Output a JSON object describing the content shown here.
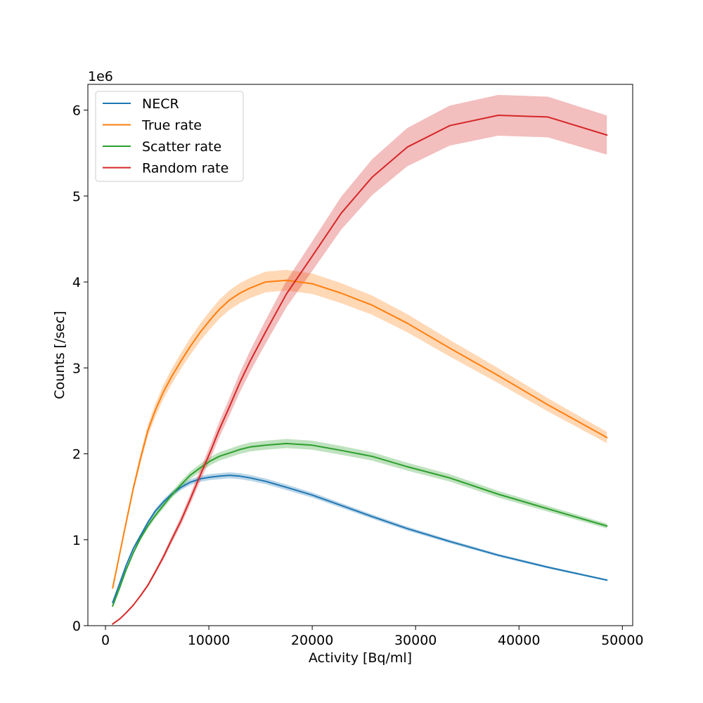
{
  "chart_data": {
    "type": "line",
    "title": "",
    "xlabel": "Activity [Bq/ml]",
    "ylabel": "Counts [/sec]",
    "y_offset_label": "1e6",
    "xlim": [
      -1700,
      51000
    ],
    "ylim": [
      0,
      6.3
    ],
    "x_ticks": [
      0,
      10000,
      20000,
      30000,
      40000,
      50000
    ],
    "x_tick_labels": [
      "0",
      "10000",
      "20000",
      "30000",
      "40000",
      "50000"
    ],
    "y_ticks": [
      0,
      1,
      2,
      3,
      4,
      5,
      6
    ],
    "y_tick_labels": [
      "0",
      "1",
      "2",
      "3",
      "4",
      "5",
      "6"
    ],
    "grid": false,
    "legend_position": "top-left",
    "series": [
      {
        "name": "NECR",
        "color": "#1f77b4",
        "band": 0.02,
        "x": [
          700,
          1400,
          2000,
          2700,
          3400,
          4100,
          4800,
          5600,
          6400,
          7300,
          8200,
          9200,
          10200,
          11000,
          12000,
          13000,
          14000,
          15500,
          17500,
          20000,
          22800,
          25800,
          29200,
          33300,
          38000,
          42800,
          48500
        ],
        "y": [
          0.27,
          0.5,
          0.7,
          0.9,
          1.05,
          1.2,
          1.33,
          1.44,
          1.53,
          1.61,
          1.67,
          1.71,
          1.73,
          1.74,
          1.75,
          1.74,
          1.72,
          1.68,
          1.61,
          1.52,
          1.4,
          1.27,
          1.13,
          0.98,
          0.82,
          0.68,
          0.53
        ]
      },
      {
        "name": "True rate",
        "color": "#ff7f0e",
        "band": 0.03,
        "x": [
          700,
          1400,
          2000,
          2700,
          3400,
          4100,
          4800,
          5600,
          6400,
          7300,
          8200,
          9200,
          10200,
          11000,
          12000,
          13000,
          14000,
          15500,
          17500,
          20000,
          22800,
          25800,
          29200,
          33300,
          38000,
          42800,
          48500
        ],
        "y": [
          0.44,
          0.85,
          1.2,
          1.6,
          1.95,
          2.27,
          2.5,
          2.72,
          2.9,
          3.08,
          3.25,
          3.42,
          3.57,
          3.68,
          3.79,
          3.87,
          3.93,
          4.0,
          4.02,
          3.98,
          3.87,
          3.73,
          3.52,
          3.23,
          2.91,
          2.57,
          2.19
        ]
      },
      {
        "name": "Scatter rate",
        "color": "#2ca02c",
        "band": 0.025,
        "x": [
          700,
          1400,
          2000,
          2700,
          3400,
          4100,
          4800,
          5600,
          6400,
          7300,
          8200,
          9200,
          10200,
          11000,
          12000,
          13000,
          14000,
          15500,
          17500,
          20000,
          22800,
          25800,
          29200,
          33300,
          38000,
          42800,
          48500
        ],
        "y": [
          0.23,
          0.45,
          0.65,
          0.85,
          1.02,
          1.16,
          1.28,
          1.4,
          1.52,
          1.64,
          1.75,
          1.84,
          1.92,
          1.97,
          2.01,
          2.05,
          2.08,
          2.1,
          2.12,
          2.1,
          2.04,
          1.97,
          1.85,
          1.72,
          1.53,
          1.36,
          1.16
        ]
      },
      {
        "name": "Random rate",
        "color": "#d62728",
        "band": 0.04,
        "x": [
          700,
          1400,
          2000,
          2700,
          3400,
          4100,
          4800,
          5600,
          6400,
          7300,
          8200,
          9200,
          10200,
          11000,
          12000,
          13000,
          14000,
          15500,
          17500,
          20000,
          22800,
          25800,
          29200,
          33300,
          38000,
          42800,
          48500
        ],
        "y": [
          0.02,
          0.08,
          0.15,
          0.24,
          0.35,
          0.47,
          0.62,
          0.8,
          1.0,
          1.22,
          1.47,
          1.76,
          2.04,
          2.28,
          2.55,
          2.83,
          3.08,
          3.42,
          3.86,
          4.3,
          4.8,
          5.22,
          5.57,
          5.82,
          5.94,
          5.92,
          5.71
        ]
      }
    ]
  }
}
